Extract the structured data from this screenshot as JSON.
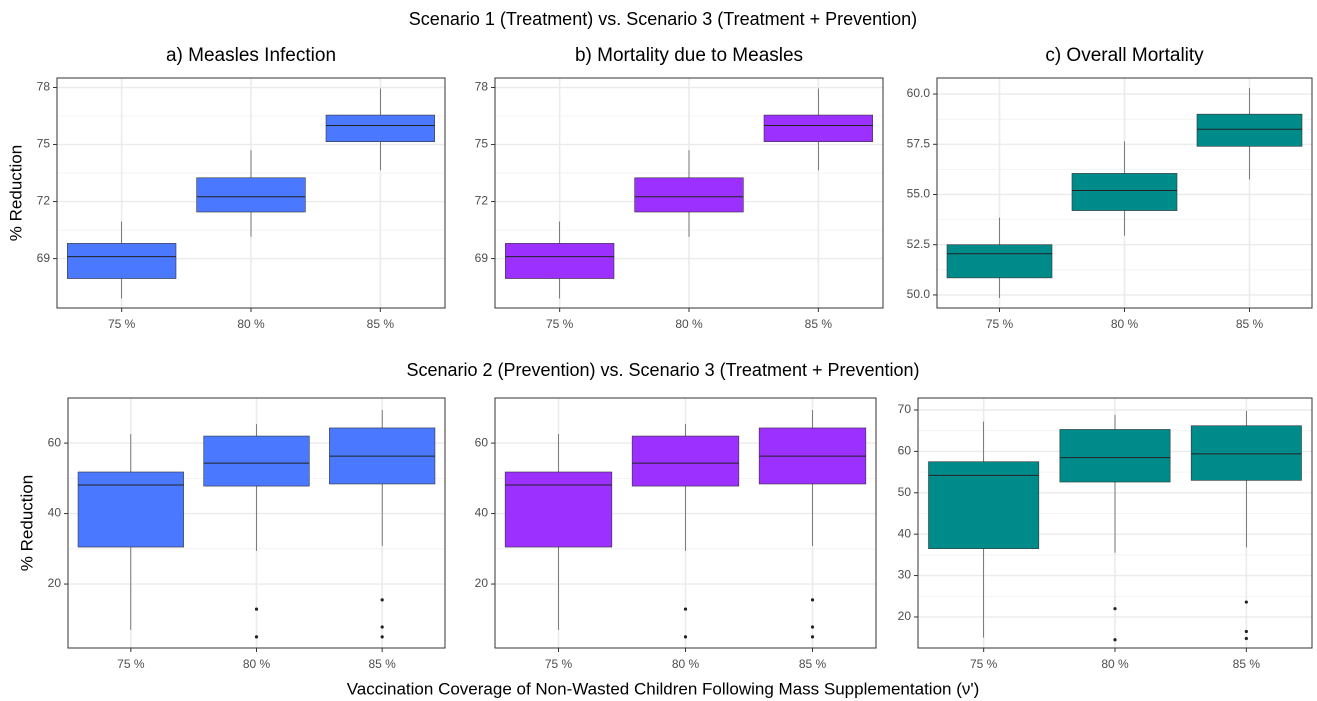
{
  "row_titles": [
    "Scenario 1 (Treatment) vs. Scenario 3 (Treatment + Prevention)",
    "Scenario 2 (Prevention) vs. Scenario 3 (Treatment + Prevention)"
  ],
  "xlabel": "Vaccination Coverage of Non-Wasted Children Following Mass Supplementation (ν')",
  "chart_data": [
    {
      "type": "box",
      "title": "a) Measles Infection",
      "ylabel": "% Reduction",
      "color": "#4a78ff",
      "categories": [
        "75 %",
        "80 %",
        "85 %"
      ],
      "ylim": [
        66.4,
        78.5
      ],
      "yticks": [
        69,
        72,
        75,
        78
      ],
      "grid": true,
      "boxes": [
        {
          "whislo": 66.9,
          "q1": 67.95,
          "med": 69.1,
          "q3": 69.8,
          "whishi": 70.95,
          "fliers": []
        },
        {
          "whislo": 70.15,
          "q1": 71.45,
          "med": 72.25,
          "q3": 73.25,
          "whishi": 74.7,
          "fliers": []
        },
        {
          "whislo": 73.65,
          "q1": 75.15,
          "med": 76.0,
          "q3": 76.55,
          "whishi": 77.95,
          "fliers": []
        }
      ]
    },
    {
      "type": "box",
      "title": "b) Mortality due to Measles",
      "color": "#9b30ff",
      "categories": [
        "75 %",
        "80 %",
        "85 %"
      ],
      "ylim": [
        66.4,
        78.5
      ],
      "yticks": [
        69,
        72,
        75,
        78
      ],
      "grid": true,
      "boxes": [
        {
          "whislo": 66.9,
          "q1": 67.95,
          "med": 69.1,
          "q3": 69.8,
          "whishi": 70.95,
          "fliers": []
        },
        {
          "whislo": 70.15,
          "q1": 71.45,
          "med": 72.25,
          "q3": 73.25,
          "whishi": 74.7,
          "fliers": []
        },
        {
          "whislo": 73.65,
          "q1": 75.15,
          "med": 76.0,
          "q3": 76.55,
          "whishi": 77.95,
          "fliers": []
        }
      ]
    },
    {
      "type": "box",
      "title": "c) Overall Mortality",
      "color": "#008b8b",
      "categories": [
        "75 %",
        "80 %",
        "85 %"
      ],
      "ylim": [
        49.35,
        60.8
      ],
      "yticks": [
        {
          "value": 50,
          "label": "50.0"
        },
        52.5,
        {
          "value": 55,
          "label": "55.0"
        },
        57.5,
        {
          "value": 60,
          "label": "60.0"
        }
      ],
      "grid": true,
      "boxes": [
        {
          "whislo": 49.85,
          "q1": 50.85,
          "med": 52.05,
          "q3": 52.5,
          "whishi": 53.85,
          "fliers": []
        },
        {
          "whislo": 52.95,
          "q1": 54.2,
          "med": 55.2,
          "q3": 56.05,
          "whishi": 57.65,
          "fliers": []
        },
        {
          "whislo": 55.75,
          "q1": 57.4,
          "med": 58.25,
          "q3": 59.0,
          "whishi": 60.3,
          "fliers": []
        }
      ]
    },
    {
      "type": "box",
      "ylabel": "% Reduction",
      "color": "#4a78ff",
      "categories": [
        "75 %",
        "80 %",
        "85 %"
      ],
      "ylim": [
        1.85,
        72.8
      ],
      "yticks": [
        20,
        40,
        60
      ],
      "grid": true,
      "boxes": [
        {
          "whislo": 7.0,
          "q1": 30.5,
          "med": 48.1,
          "q3": 51.8,
          "whishi": 62.6,
          "fliers": []
        },
        {
          "whislo": 29.4,
          "q1": 47.8,
          "med": 54.3,
          "q3": 62.0,
          "whishi": 65.4,
          "fliers": [
            12.9,
            5.0
          ]
        },
        {
          "whislo": 30.8,
          "q1": 48.4,
          "med": 56.3,
          "q3": 64.3,
          "whishi": 69.4,
          "fliers": [
            15.5,
            7.8,
            5.0
          ]
        }
      ]
    },
    {
      "type": "box",
      "color": "#9b30ff",
      "categories": [
        "75 %",
        "80 %",
        "85 %"
      ],
      "ylim": [
        1.85,
        72.8
      ],
      "yticks": [
        20,
        40,
        60
      ],
      "grid": true,
      "boxes": [
        {
          "whislo": 7.0,
          "q1": 30.5,
          "med": 48.1,
          "q3": 51.8,
          "whishi": 62.6,
          "fliers": []
        },
        {
          "whislo": 29.4,
          "q1": 47.8,
          "med": 54.3,
          "q3": 62.0,
          "whishi": 65.4,
          "fliers": [
            12.9,
            5.0
          ]
        },
        {
          "whislo": 30.8,
          "q1": 48.4,
          "med": 56.3,
          "q3": 64.3,
          "whishi": 69.4,
          "fliers": [
            15.5,
            7.8,
            5.0
          ]
        }
      ]
    },
    {
      "type": "box",
      "color": "#008b8b",
      "categories": [
        "75 %",
        "80 %",
        "85 %"
      ],
      "ylim": [
        12.5,
        72.9
      ],
      "yticks": [
        20,
        30,
        40,
        50,
        60,
        70
      ],
      "grid": true,
      "boxes": [
        {
          "whislo": 15.0,
          "q1": 36.5,
          "med": 54.2,
          "q3": 57.5,
          "whishi": 67.2,
          "fliers": []
        },
        {
          "whislo": 35.5,
          "q1": 52.6,
          "med": 58.5,
          "q3": 65.3,
          "whishi": 68.8,
          "fliers": [
            22.0,
            14.5
          ]
        },
        {
          "whislo": 36.8,
          "q1": 53.0,
          "med": 59.4,
          "q3": 66.2,
          "whishi": 69.8,
          "fliers": [
            23.6,
            16.5,
            14.8
          ]
        }
      ]
    }
  ]
}
